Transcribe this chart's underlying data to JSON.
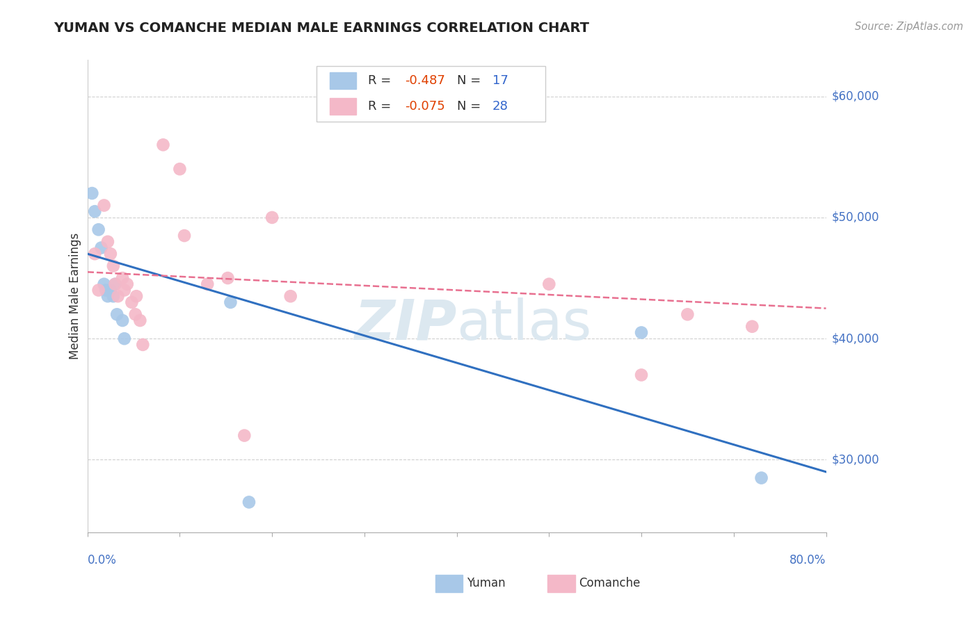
{
  "title": "YUMAN VS COMANCHE MEDIAN MALE EARNINGS CORRELATION CHART",
  "source": "Source: ZipAtlas.com",
  "ylabel": "Median Male Earnings",
  "yuman_color": "#a8c8e8",
  "comanche_color": "#f4b8c8",
  "yuman_label": "Yuman",
  "comanche_label": "Comanche",
  "yuman_R": "-0.487",
  "yuman_N": "17",
  "comanche_R": "-0.075",
  "comanche_N": "28",
  "ytick_labels": [
    "$30,000",
    "$40,000",
    "$50,000",
    "$60,000"
  ],
  "ytick_values": [
    30000,
    40000,
    50000,
    60000
  ],
  "xlim": [
    0.0,
    0.8
  ],
  "ylim": [
    24000,
    63000
  ],
  "watermark_zip": "ZIP",
  "watermark_atlas": "atlas",
  "yuman_x": [
    0.005,
    0.008,
    0.012,
    0.015,
    0.018,
    0.02,
    0.022,
    0.025,
    0.028,
    0.03,
    0.032,
    0.038,
    0.04,
    0.155,
    0.175,
    0.6,
    0.73
  ],
  "yuman_y": [
    52000,
    50500,
    49000,
    47500,
    44500,
    44000,
    43500,
    44000,
    43500,
    44500,
    42000,
    41500,
    40000,
    43000,
    26500,
    40500,
    28500
  ],
  "comanche_x": [
    0.008,
    0.012,
    0.018,
    0.022,
    0.025,
    0.028,
    0.03,
    0.033,
    0.038,
    0.04,
    0.043,
    0.048,
    0.052,
    0.053,
    0.057,
    0.06,
    0.082,
    0.1,
    0.105,
    0.13,
    0.152,
    0.17,
    0.2,
    0.22,
    0.5,
    0.6,
    0.65,
    0.72
  ],
  "comanche_y": [
    47000,
    44000,
    51000,
    48000,
    47000,
    46000,
    44500,
    43500,
    45000,
    44000,
    44500,
    43000,
    42000,
    43500,
    41500,
    39500,
    56000,
    54000,
    48500,
    44500,
    45000,
    32000,
    50000,
    43500,
    44500,
    37000,
    42000,
    41000
  ],
  "blue_line_x": [
    0.0,
    0.8
  ],
  "blue_line_y": [
    47000,
    29000
  ],
  "pink_line_x": [
    0.0,
    0.8
  ],
  "pink_line_y": [
    45500,
    42500
  ],
  "blue_line_color": "#3070c0",
  "pink_line_color": "#e87090",
  "background_color": "#ffffff",
  "grid_color": "#d0d0d0",
  "title_color": "#222222",
  "ylabel_color": "#333333",
  "axis_tick_color": "#4472c4",
  "source_color": "#999999",
  "legend_edge_color": "#cccccc",
  "R_color": "#e04000",
  "N_color": "#3366cc",
  "watermark_color": "#dce8f0"
}
